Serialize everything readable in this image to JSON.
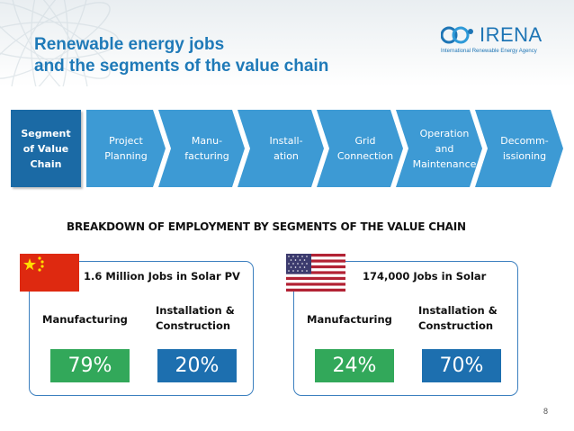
{
  "header": {
    "title_line1": "Renewable energy jobs",
    "title_line2": "and the segments of the value chain",
    "logo_name": "IRENA",
    "logo_tagline": "International Renewable Energy Agency",
    "accent_color": "#1f7ab8"
  },
  "value_chain": {
    "label_line1": "Segment",
    "label_line2": "of Value",
    "label_line3": "Chain",
    "steps": [
      {
        "line1": "Project",
        "line2": "Planning",
        "line3": "",
        "color": "#3d9ad4"
      },
      {
        "line1": "Manu-",
        "line2": "facturing",
        "line3": "",
        "color": "#3d9ad4"
      },
      {
        "line1": "Install-",
        "line2": "ation",
        "line3": "",
        "color": "#3d9ad4"
      },
      {
        "line1": "Grid",
        "line2": "Connection",
        "line3": "",
        "color": "#3d9ad4"
      },
      {
        "line1": "Operation",
        "line2": "and",
        "line3": "Maintenance",
        "color": "#3d9ad4"
      },
      {
        "line1": "Decomm-",
        "line2": "issioning",
        "line3": "",
        "color": "#3d9ad4"
      }
    ]
  },
  "breakdown_heading": "BREAKDOWN OF EMPLOYMENT BY SEGMENTS OF THE VALUE CHAIN",
  "countries": {
    "china": {
      "title": "1.6 Million Jobs in Solar PV",
      "manufacturing_label": "Manufacturing",
      "installation_line1": "Installation &",
      "installation_line2": "Construction",
      "manufacturing_pct": "79%",
      "installation_pct": "20%"
    },
    "usa": {
      "title": "174,000 Jobs in Solar",
      "manufacturing_label": "Manufacturing",
      "installation_line1": "Installation &",
      "installation_line2": "Construction",
      "manufacturing_pct": "24%",
      "installation_pct": "70%"
    }
  },
  "colors": {
    "manufacturing": "#32a85a",
    "installation": "#1d6faf",
    "segment_label": "#1b6aa5"
  },
  "page_number": "8"
}
